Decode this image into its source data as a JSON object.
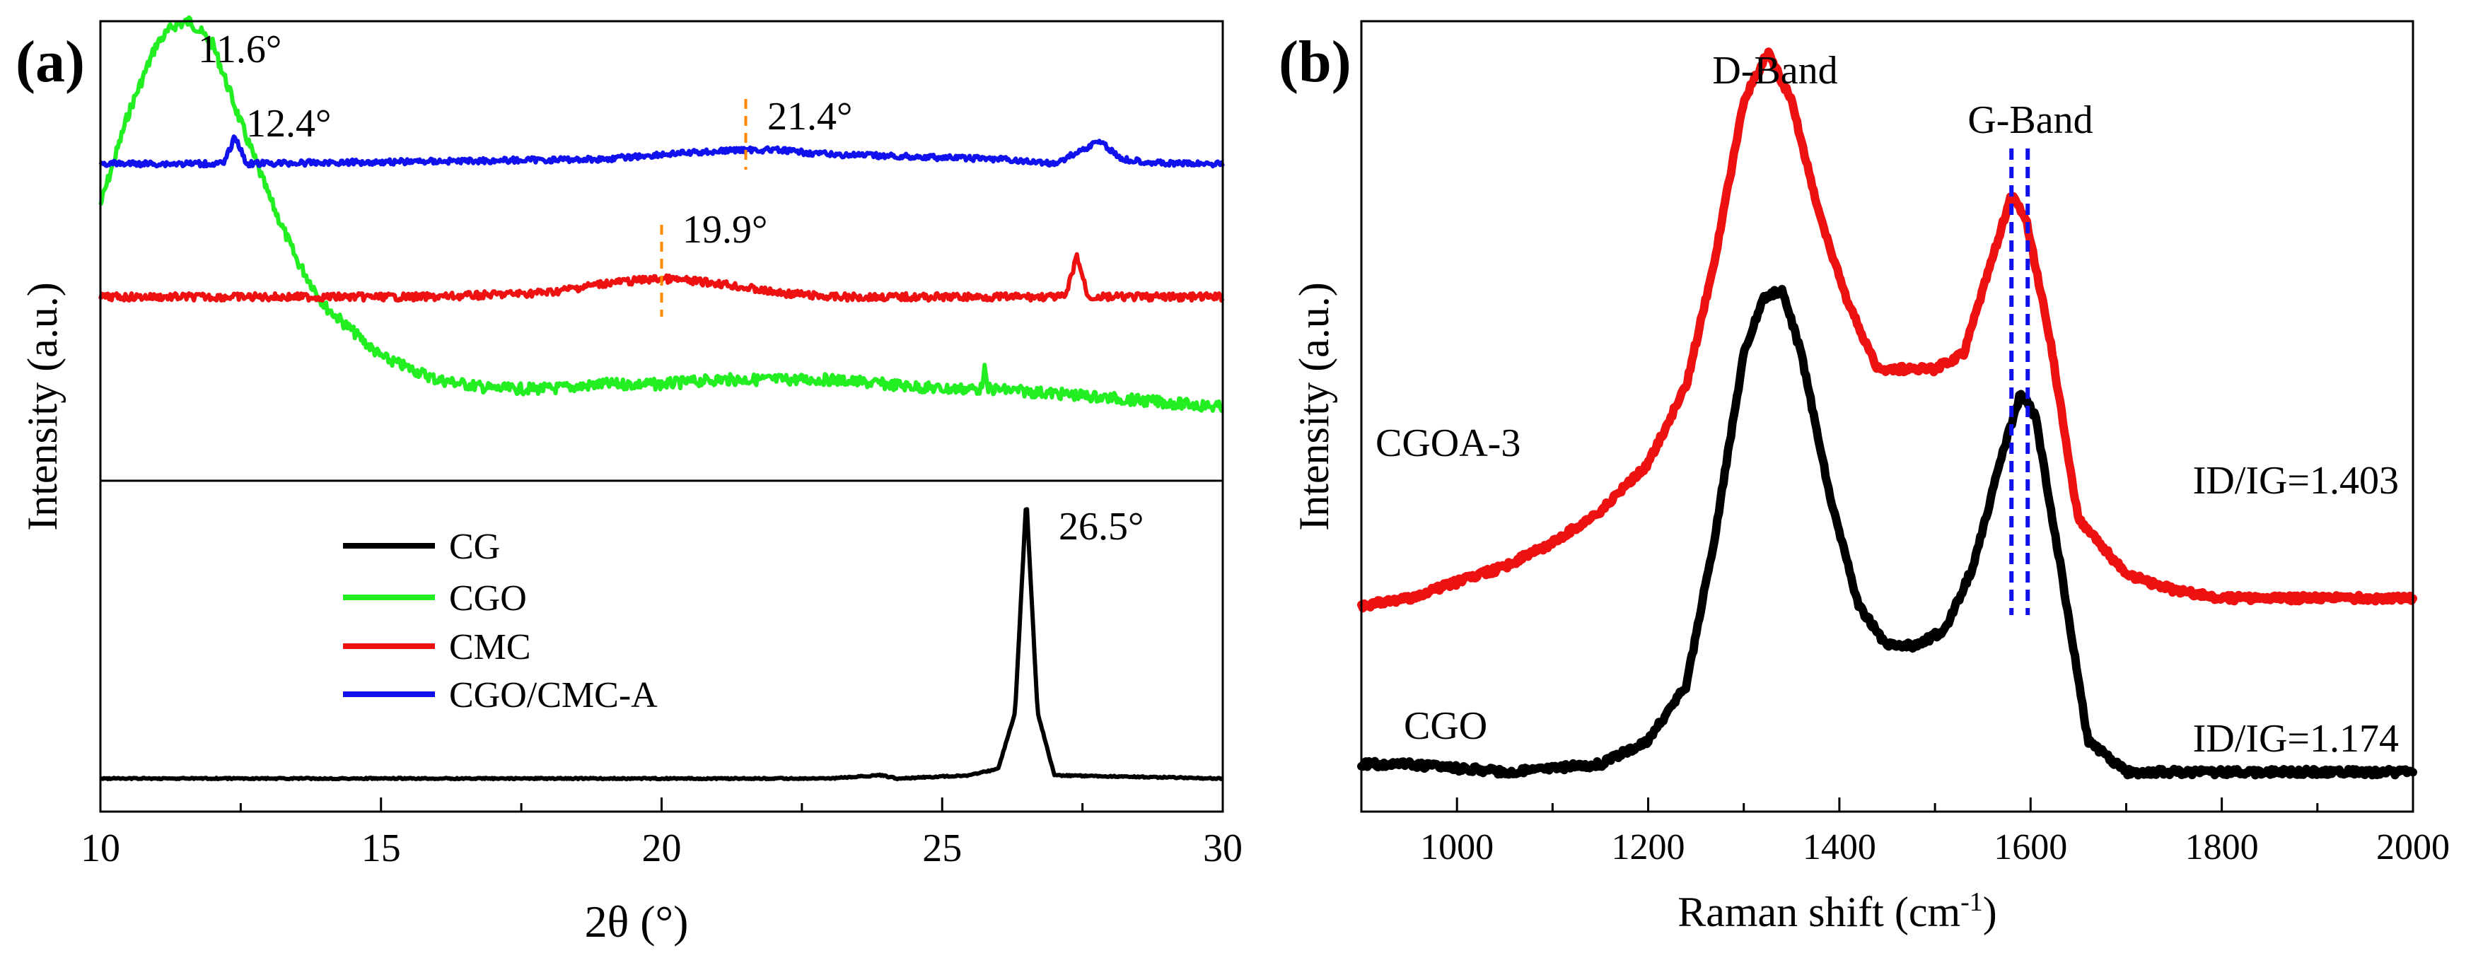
{
  "chart_data": [
    {
      "panel": "(a)",
      "type": "line",
      "xlabel": "2θ (°)",
      "ylabel": "Intensity (a.u.)",
      "xlim": [
        10,
        30
      ],
      "xticks": [
        "10",
        "15",
        "20",
        "25",
        "30"
      ],
      "legend": [
        "CG",
        "CGO",
        "CMC",
        "CGO/CMC-A"
      ],
      "legend_position": "lower-left (lower subpanel)",
      "series": [
        {
          "name": "CGO",
          "color": "#22ee22",
          "subpanel": "upper",
          "baseline": 0.6,
          "noise": 0.012,
          "points": [
            [
              10,
              0.4
            ],
            [
              10.5,
              0.2
            ],
            [
              11,
              0.05
            ],
            [
              11.3,
              0.01
            ],
            [
              11.6,
              0.0
            ],
            [
              12,
              0.05
            ],
            [
              12.5,
              0.22
            ],
            [
              13,
              0.38
            ],
            [
              13.5,
              0.52
            ],
            [
              14,
              0.62
            ],
            [
              15,
              0.73
            ],
            [
              16,
              0.78
            ],
            [
              17,
              0.8
            ],
            [
              18,
              0.8
            ],
            [
              19,
              0.79
            ],
            [
              20,
              0.79
            ],
            [
              21,
              0.78
            ],
            [
              22,
              0.78
            ],
            [
              23,
              0.78
            ],
            [
              24,
              0.79
            ],
            [
              25,
              0.8
            ],
            [
              25.7,
              0.8
            ],
            [
              25.75,
              0.75
            ],
            [
              25.8,
              0.8
            ],
            [
              27,
              0.81
            ],
            [
              28,
              0.82
            ],
            [
              29,
              0.83
            ],
            [
              30,
              0.84
            ]
          ]
        },
        {
          "name": "CMC",
          "color": "#ee1111",
          "subpanel": "upper",
          "baseline": 0.6,
          "noise": 0.008,
          "points": [
            [
              10,
              0.6
            ],
            [
              16,
              0.6
            ],
            [
              18,
              0.59
            ],
            [
              19,
              0.57
            ],
            [
              20,
              0.56
            ],
            [
              21,
              0.57
            ],
            [
              22,
              0.59
            ],
            [
              23,
              0.6
            ],
            [
              27.2,
              0.6
            ],
            [
              27.4,
              0.51
            ],
            [
              27.6,
              0.6
            ],
            [
              30,
              0.6
            ]
          ]
        },
        {
          "name": "CGO/CMC-A",
          "color": "#1111ee",
          "subpanel": "upper",
          "baseline": 0.31,
          "noise": 0.006,
          "points": [
            [
              10,
              0.31
            ],
            [
              12.2,
              0.31
            ],
            [
              12.4,
              0.25
            ],
            [
              12.6,
              0.31
            ],
            [
              19,
              0.3
            ],
            [
              20,
              0.29
            ],
            [
              21.4,
              0.28
            ],
            [
              22,
              0.28
            ],
            [
              23,
              0.29
            ],
            [
              26,
              0.3
            ],
            [
              27,
              0.31
            ],
            [
              27.5,
              0.28
            ],
            [
              27.8,
              0.26
            ],
            [
              28.2,
              0.3
            ],
            [
              29,
              0.31
            ],
            [
              30,
              0.31
            ]
          ]
        },
        {
          "name": "CG",
          "color": "#000000",
          "subpanel": "lower",
          "baseline": 0.9,
          "noise": 0.002,
          "points": [
            [
              10,
              0.9
            ],
            [
              23,
              0.9
            ],
            [
              23.9,
              0.89
            ],
            [
              24.2,
              0.9
            ],
            [
              25.5,
              0.89
            ],
            [
              26.0,
              0.87
            ],
            [
              26.3,
              0.7
            ],
            [
              26.5,
              0.05
            ],
            [
              26.7,
              0.7
            ],
            [
              27.0,
              0.89
            ],
            [
              30,
              0.9
            ]
          ]
        }
      ],
      "annotations": [
        {
          "text": "11.6°",
          "x": 11.6
        },
        {
          "text": "12.4°",
          "x": 12.4
        },
        {
          "text": "21.4°",
          "x": 21.4
        },
        {
          "text": "19.9°",
          "x": 19.9
        },
        {
          "text": "26.5°",
          "x": 26.5
        }
      ],
      "dashed_markers": [
        {
          "x": 21.5,
          "color": "#ff8800"
        },
        {
          "x": 20.0,
          "color": "#ff8800"
        }
      ]
    },
    {
      "panel": "(b)",
      "type": "line",
      "xlabel": "Raman shift (cm⁻¹)",
      "xlabel_main": "Raman shift (cm",
      "xlabel_sup": "-1",
      "xlabel_tail": ")",
      "ylabel": "Intensity (a.u.)",
      "xlim": [
        900,
        2000
      ],
      "xticks": [
        "1000",
        "1200",
        "1400",
        "1600",
        "1800",
        "2000"
      ],
      "series": [
        {
          "name": "CGOA-3",
          "color": "#ee1111",
          "ratio": "ID/IG=1.403",
          "noise": 0.004,
          "points": [
            [
              900,
              0.74
            ],
            [
              950,
              0.73
            ],
            [
              1000,
              0.71
            ],
            [
              1050,
              0.69
            ],
            [
              1100,
              0.66
            ],
            [
              1150,
              0.62
            ],
            [
              1200,
              0.56
            ],
            [
              1240,
              0.46
            ],
            [
              1270,
              0.3
            ],
            [
              1300,
              0.1
            ],
            [
              1325,
              0.04
            ],
            [
              1350,
              0.1
            ],
            [
              1380,
              0.25
            ],
            [
              1410,
              0.36
            ],
            [
              1440,
              0.44
            ],
            [
              1470,
              0.44
            ],
            [
              1500,
              0.44
            ],
            [
              1530,
              0.42
            ],
            [
              1555,
              0.32
            ],
            [
              1580,
              0.22
            ],
            [
              1595,
              0.25
            ],
            [
              1620,
              0.4
            ],
            [
              1650,
              0.63
            ],
            [
              1700,
              0.7
            ],
            [
              1750,
              0.72
            ],
            [
              1800,
              0.73
            ],
            [
              1900,
              0.73
            ],
            [
              2000,
              0.73
            ]
          ]
        },
        {
          "name": "CGO",
          "color": "#000000",
          "ratio": "ID/IG=1.174",
          "noise": 0.004,
          "points": [
            [
              900,
              0.94
            ],
            [
              950,
              0.94
            ],
            [
              1000,
              0.945
            ],
            [
              1050,
              0.95
            ],
            [
              1100,
              0.945
            ],
            [
              1150,
              0.94
            ],
            [
              1200,
              0.91
            ],
            [
              1240,
              0.84
            ],
            [
              1270,
              0.65
            ],
            [
              1300,
              0.42
            ],
            [
              1320,
              0.35
            ],
            [
              1340,
              0.34
            ],
            [
              1360,
              0.42
            ],
            [
              1390,
              0.6
            ],
            [
              1420,
              0.74
            ],
            [
              1450,
              0.79
            ],
            [
              1480,
              0.79
            ],
            [
              1510,
              0.77
            ],
            [
              1540,
              0.69
            ],
            [
              1570,
              0.55
            ],
            [
              1590,
              0.47
            ],
            [
              1605,
              0.5
            ],
            [
              1630,
              0.68
            ],
            [
              1660,
              0.91
            ],
            [
              1700,
              0.95
            ],
            [
              1800,
              0.95
            ],
            [
              2000,
              0.95
            ]
          ]
        }
      ],
      "annotations": [
        {
          "text": "D-Band"
        },
        {
          "text": "G-Band"
        },
        {
          "text": "CGOA-3"
        },
        {
          "text": "CGO"
        }
      ],
      "dashed_markers": [
        {
          "x": 1580,
          "color": "#1111ee"
        },
        {
          "x": 1597,
          "color": "#1111ee"
        }
      ]
    }
  ]
}
